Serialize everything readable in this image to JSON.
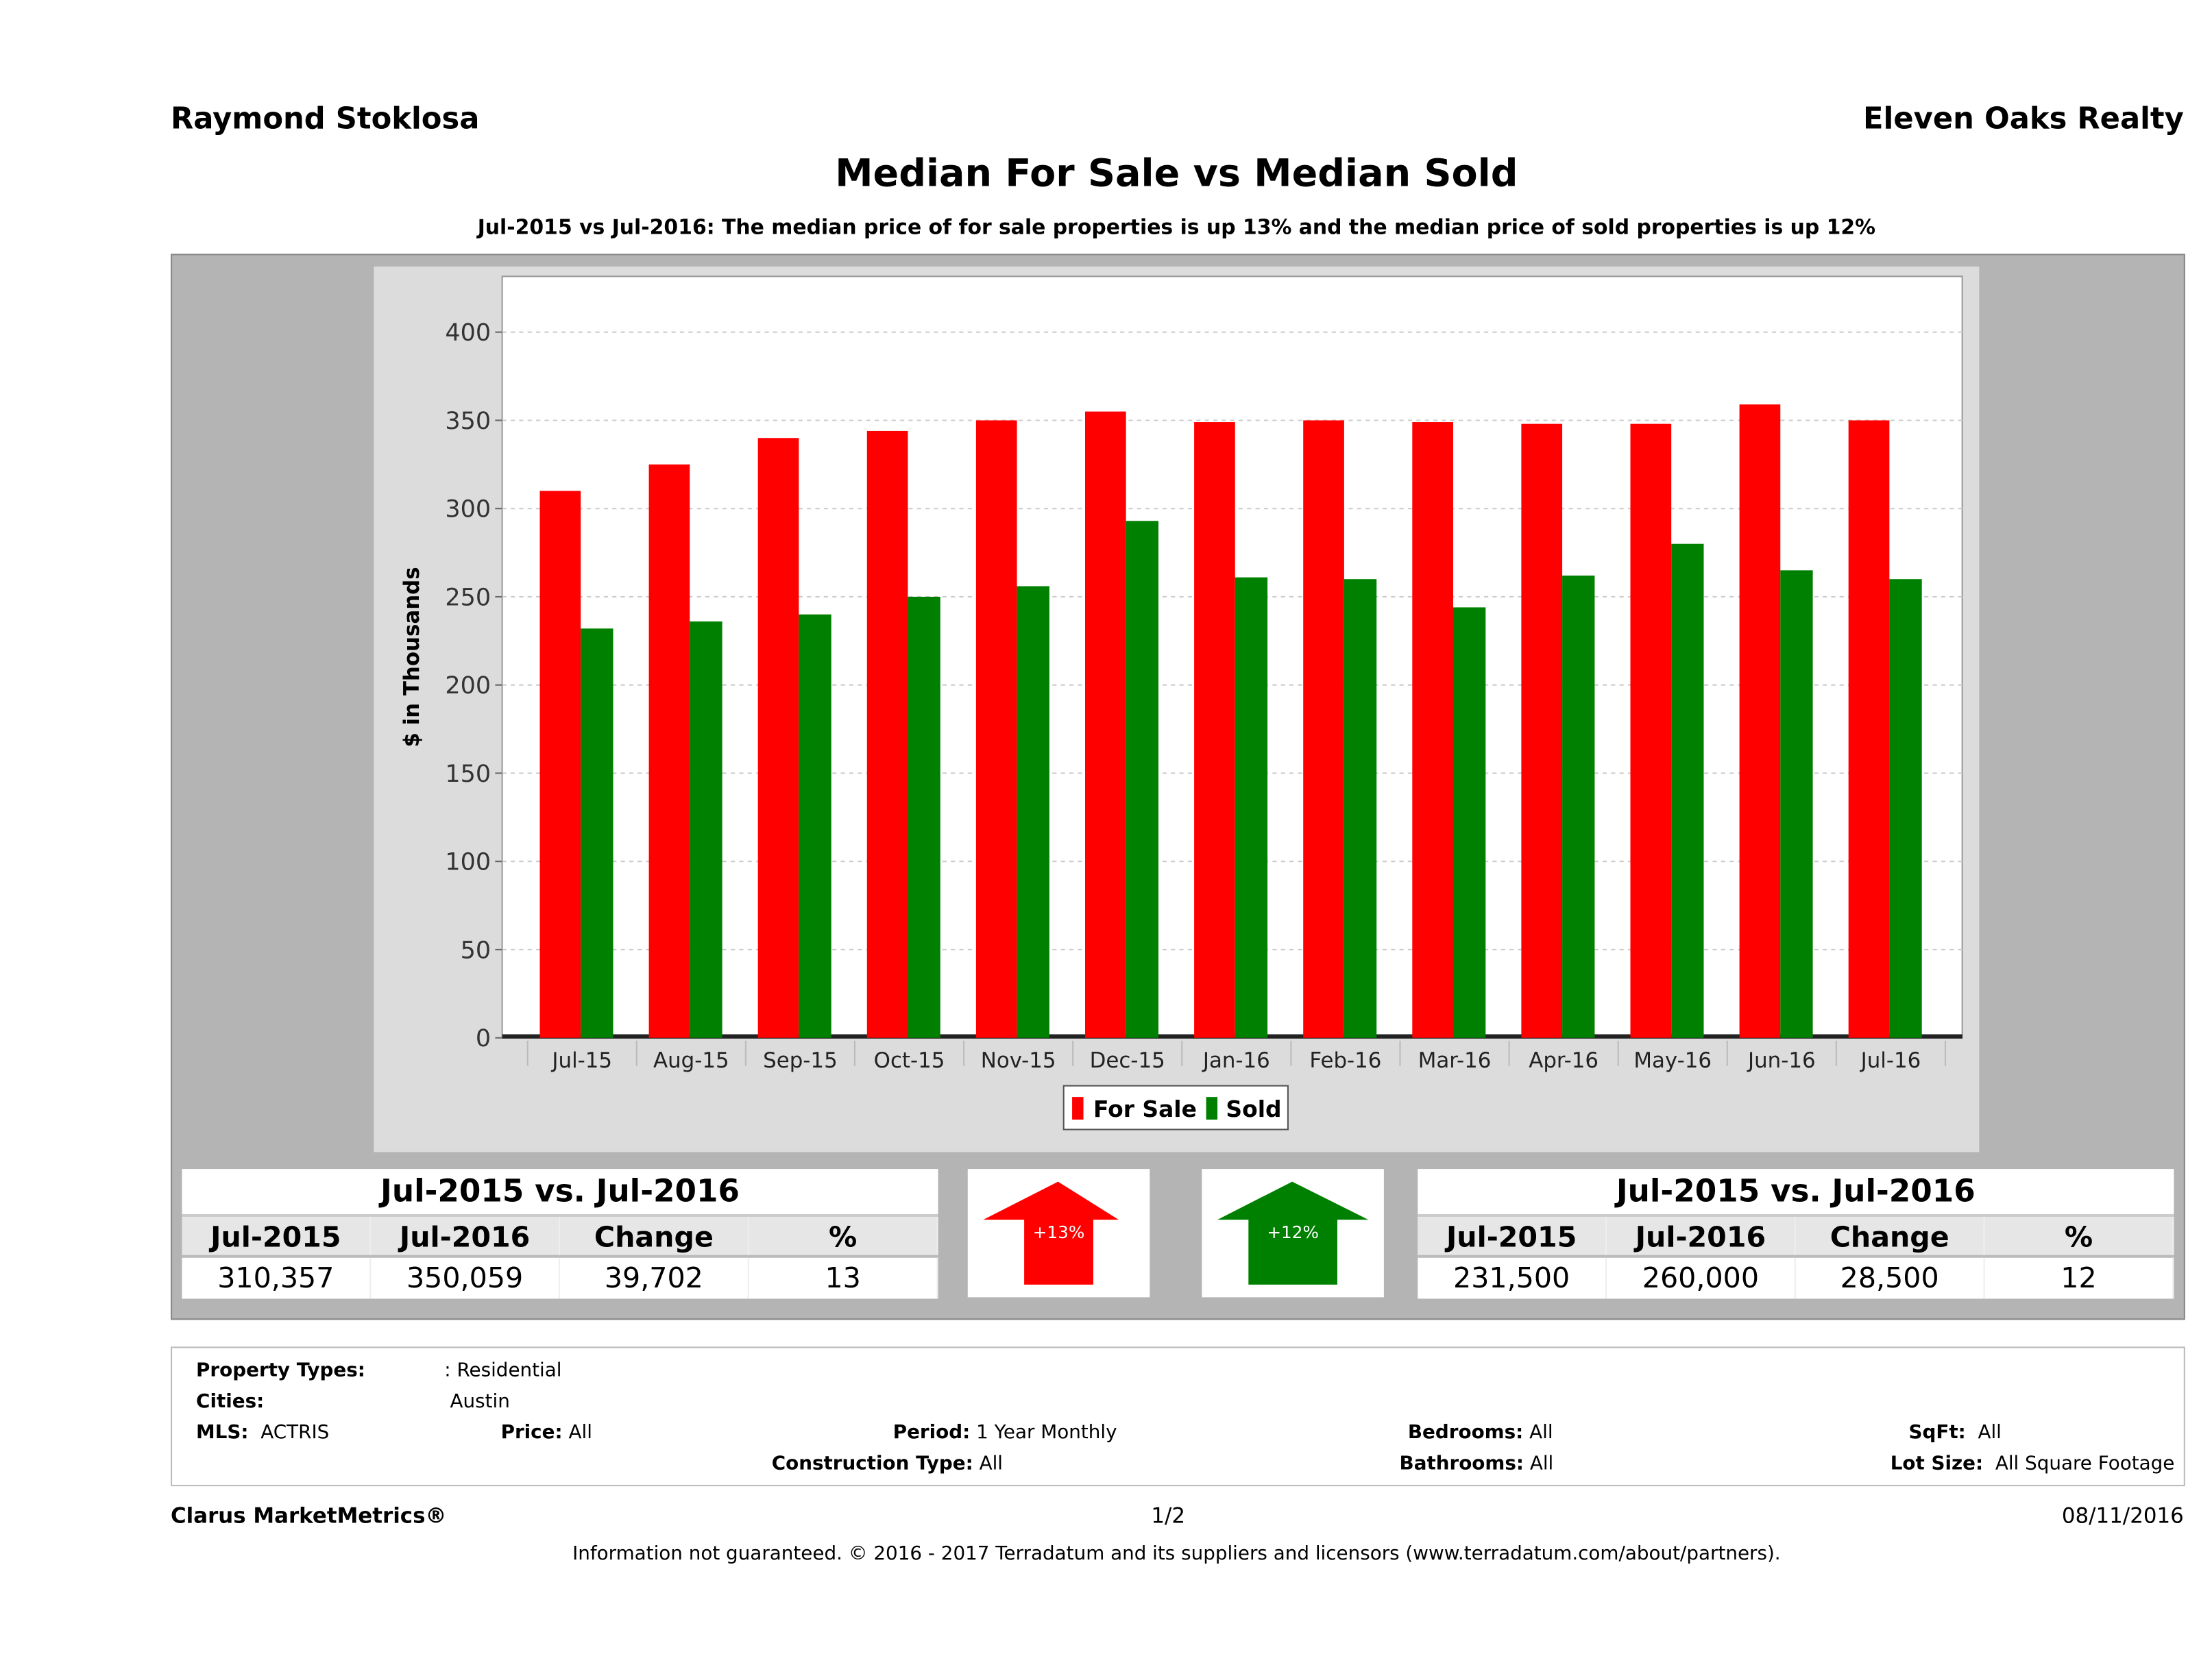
{
  "header": {
    "agent": "Raymond Stoklosa",
    "brokerage": "Eleven Oaks Realty"
  },
  "chart_data": {
    "type": "bar",
    "title": "Median For Sale vs Median Sold",
    "subtitle": "Jul-2015 vs Jul-2016: The median price of for sale properties is up 13% and the median price of sold properties is up 12%",
    "xlabel": "",
    "ylabel": "$ in Thousands",
    "ylim": [
      0,
      430
    ],
    "yticks": [
      0,
      50,
      100,
      150,
      200,
      250,
      300,
      350,
      400
    ],
    "grid": true,
    "legend": "bottom",
    "categories": [
      "Jul-15",
      "Aug-15",
      "Sep-15",
      "Oct-15",
      "Nov-15",
      "Dec-15",
      "Jan-16",
      "Feb-16",
      "Mar-16",
      "Apr-16",
      "May-16",
      "Jun-16",
      "Jul-16"
    ],
    "series": [
      {
        "name": "For Sale",
        "color": "#ff0000",
        "values": [
          310,
          325,
          340,
          344,
          350,
          355,
          349,
          350,
          349,
          348,
          348,
          359,
          350
        ]
      },
      {
        "name": "Sold",
        "color": "#008000",
        "values": [
          232,
          236,
          240,
          250,
          256,
          293,
          261,
          260,
          244,
          262,
          280,
          265,
          260
        ]
      }
    ]
  },
  "for_sale_table": {
    "caption": "Jul-2015 vs. Jul-2016",
    "headers": [
      "Jul-2015",
      "Jul-2016",
      "Change",
      "%"
    ],
    "values": [
      "310,357",
      "350,059",
      "39,702",
      "13"
    ]
  },
  "sold_table": {
    "caption": "Jul-2015 vs. Jul-2016",
    "headers": [
      "Jul-2015",
      "Jul-2016",
      "Change",
      "%"
    ],
    "values": [
      "231,500",
      "260,000",
      "28,500",
      "12"
    ]
  },
  "arrows": [
    {
      "label": "+13%",
      "direction": "up",
      "color": "#ff0000",
      "icon": "arrow-up-icon"
    },
    {
      "label": "+12%",
      "direction": "up",
      "color": "#008000",
      "icon": "arrow-up-icon"
    }
  ],
  "criteria": {
    "property_types_label": "Property Types:",
    "property_types": ": Residential",
    "cities_label": "Cities:",
    "cities": "Austin",
    "mls_label": "MLS:",
    "mls": "ACTRIS",
    "price_label": "Price:",
    "price": "All",
    "period_label": "Period:",
    "period": "1 Year Monthly",
    "bedrooms_label": "Bedrooms:",
    "bedrooms": "All",
    "sqft_label": "SqFt:",
    "sqft": "All",
    "construction_label": "Construction Type:",
    "construction": "All",
    "bathrooms_label": "Bathrooms:",
    "bathrooms": "All",
    "lot_label": "Lot Size:",
    "lot": "All Square Footage"
  },
  "footer": {
    "product": "Clarus MarketMetrics®",
    "page": "1/2",
    "date": "08/11/2016",
    "disclaimer": "Information not guaranteed. © 2016 - 2017 Terradatum and its suppliers and licensors (www.terradatum.com/about/partners)."
  }
}
